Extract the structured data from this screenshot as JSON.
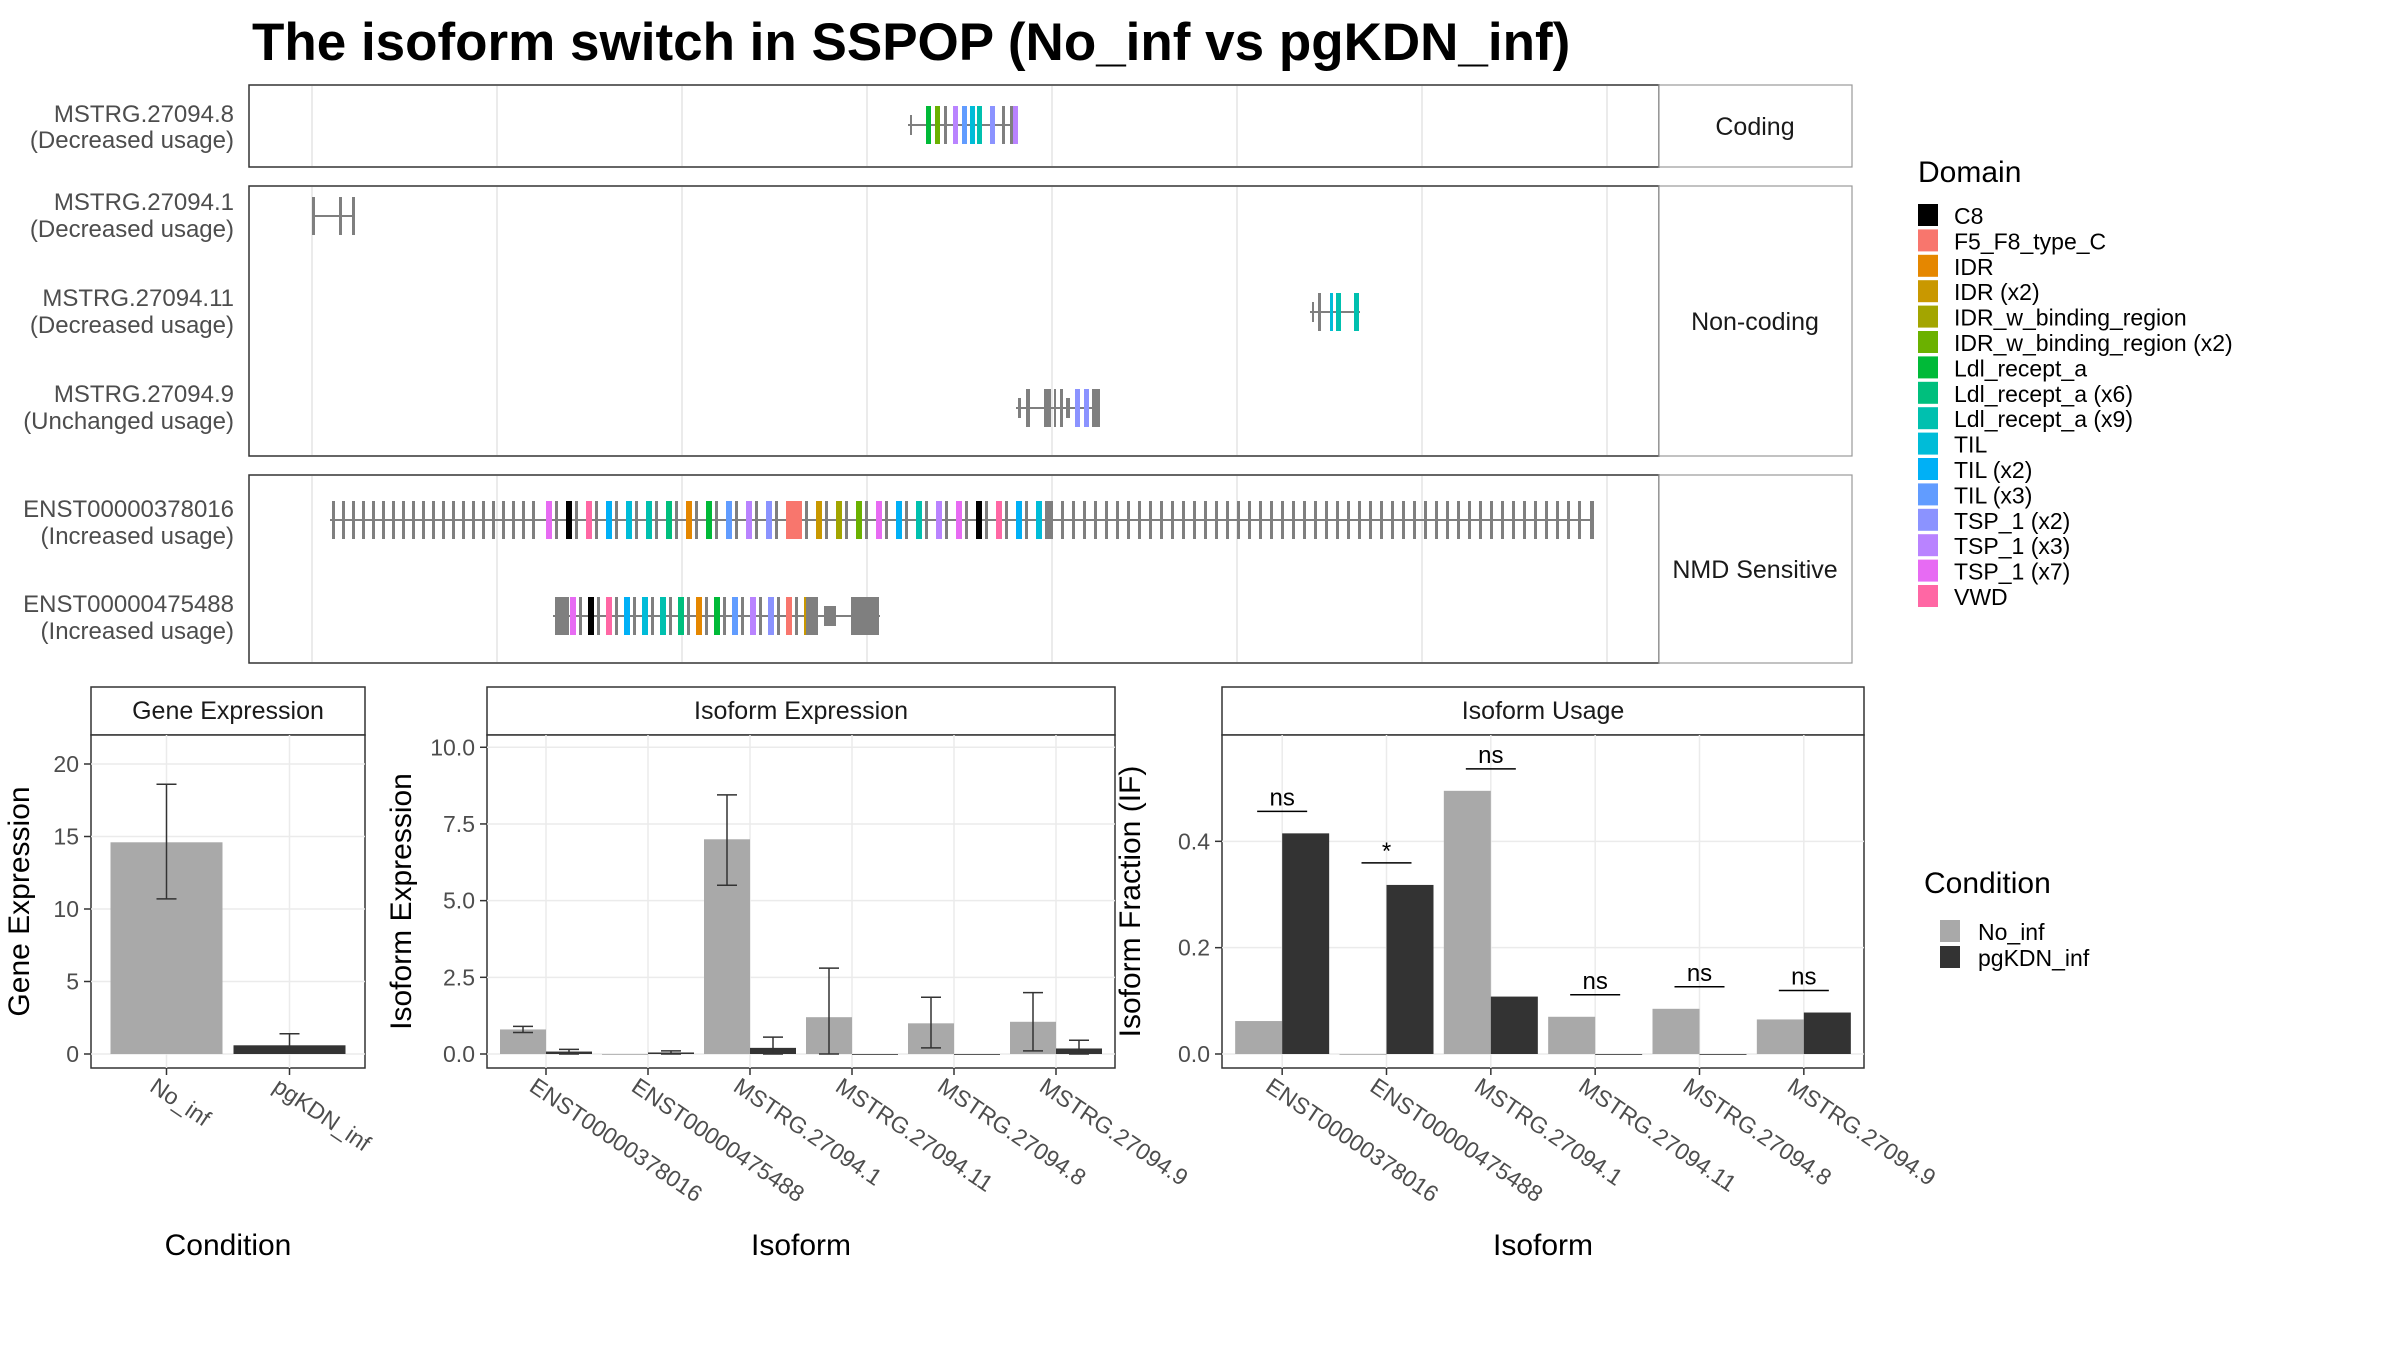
{
  "title": "The isoform switch in SSPOP (No_inf vs pgKDN_inf)",
  "colors": {
    "no_inf": "#a9a9a9",
    "pgkdn_inf": "#333333",
    "exon": "#7f7f7f",
    "panel_border": "#333333",
    "strip_bg": "#ffffff",
    "grid": "#ebebeb"
  },
  "chart_data": [
    {
      "type": "gene-structure",
      "groups": [
        {
          "label": "Coding",
          "isoforms": [
            {
              "id": "MSTRG.27094.8",
              "usage": "(Decreased usage)"
            }
          ]
        },
        {
          "label": "Non-coding",
          "isoforms": [
            {
              "id": "MSTRG.27094.1",
              "usage": "(Decreased usage)"
            },
            {
              "id": "MSTRG.27094.11",
              "usage": "(Decreased usage)"
            },
            {
              "id": "MSTRG.27094.9",
              "usage": "(Unchanged usage)"
            }
          ]
        },
        {
          "label": "NMD Sensitive",
          "isoforms": [
            {
              "id": "ENST00000378016",
              "usage": "(Increased usage)"
            },
            {
              "id": "ENST00000475488",
              "usage": "(Increased usage)"
            }
          ]
        }
      ],
      "legend": {
        "title": "Domain",
        "entries": [
          {
            "name": "C8",
            "color": "#000000"
          },
          {
            "name": "F5_F8_type_C",
            "color": "#F8766D"
          },
          {
            "name": "IDR",
            "color": "#E58700"
          },
          {
            "name": "IDR (x2)",
            "color": "#C99800"
          },
          {
            "name": "IDR_w_binding_region",
            "color": "#A3A500"
          },
          {
            "name": "IDR_w_binding_region (x2)",
            "color": "#6BB100"
          },
          {
            "name": "Ldl_recept_a",
            "color": "#00BA38"
          },
          {
            "name": "Ldl_recept_a (x6)",
            "color": "#00BF7D"
          },
          {
            "name": "Ldl_recept_a (x9)",
            "color": "#00C0AF"
          },
          {
            "name": "TIL",
            "color": "#00BCD8"
          },
          {
            "name": "TIL (x2)",
            "color": "#00B0F6"
          },
          {
            "name": "TIL (x3)",
            "color": "#619CFF"
          },
          {
            "name": "TSP_1 (x2)",
            "color": "#8B93FF"
          },
          {
            "name": "TSP_1 (x3)",
            "color": "#B983FF"
          },
          {
            "name": "TSP_1 (x7)",
            "color": "#E76BF3"
          },
          {
            "name": "VWD",
            "color": "#FF67A4"
          }
        ]
      }
    },
    {
      "type": "bar",
      "strip": "Gene Expression",
      "xlabel": "Condition",
      "ylabel": "Gene Expression",
      "ylim": [
        0,
        22
      ],
      "yticks": [
        "0",
        "5",
        "10",
        "15",
        "20"
      ],
      "categories": [
        "No_inf",
        "pgKDN_inf"
      ],
      "values": [
        14.6,
        0.6
      ],
      "errors": [
        [
          10.7,
          18.6
        ],
        [
          0.1,
          1.4
        ]
      ]
    },
    {
      "type": "bar",
      "strip": "Isoform Expression",
      "xlabel": "Isoform",
      "ylabel": "Isoform Expression",
      "ylim": [
        0,
        10.4
      ],
      "yticks": [
        "0.0",
        "2.5",
        "5.0",
        "7.5",
        "10.0"
      ],
      "categories": [
        "ENST00000378016",
        "ENST00000475488",
        "MSTRG.27094.1",
        "MSTRG.27094.11",
        "MSTRG.27094.8",
        "MSTRG.27094.9"
      ],
      "series": [
        {
          "name": "No_inf",
          "values": [
            0.8,
            0.0,
            7.0,
            1.2,
            1.0,
            1.05
          ],
          "errors": [
            [
              0.7,
              0.9
            ],
            [
              0.0,
              0.0
            ],
            [
              5.5,
              8.45
            ],
            [
              0.0,
              2.8
            ],
            [
              0.2,
              1.85
            ],
            [
              0.1,
              2.0
            ]
          ]
        },
        {
          "name": "pgKDN_inf",
          "values": [
            0.08,
            0.05,
            0.2,
            0.0,
            0.0,
            0.18
          ],
          "errors": [
            [
              0.0,
              0.15
            ],
            [
              0.0,
              0.1
            ],
            [
              0.0,
              0.55
            ],
            [
              0.0,
              0.0
            ],
            [
              0.0,
              0.0
            ],
            [
              0.0,
              0.45
            ]
          ]
        }
      ]
    },
    {
      "type": "bar",
      "strip": "Isoform Usage",
      "xlabel": "Isoform",
      "ylabel": "Isoform Fraction (IF)",
      "ylim": [
        0,
        0.6
      ],
      "yticks": [
        "0.0",
        "0.2",
        "0.4"
      ],
      "categories": [
        "ENST00000378016",
        "ENST00000475488",
        "MSTRG.27094.1",
        "MSTRG.27094.11",
        "MSTRG.27094.8",
        "MSTRG.27094.9"
      ],
      "series": [
        {
          "name": "No_inf",
          "values": [
            0.062,
            0.0,
            0.495,
            0.07,
            0.085,
            0.065
          ]
        },
        {
          "name": "pgKDN_inf",
          "values": [
            0.415,
            0.318,
            0.108,
            0.0,
            0.0,
            0.078
          ]
        }
      ],
      "significance": [
        "ns",
        "*",
        "ns",
        "ns",
        "ns",
        "ns"
      ]
    }
  ],
  "condition_legend": {
    "title": "Condition",
    "entries": [
      {
        "name": "No_inf",
        "color": "#a9a9a9"
      },
      {
        "name": "pgKDN_inf",
        "color": "#333333"
      }
    ]
  }
}
